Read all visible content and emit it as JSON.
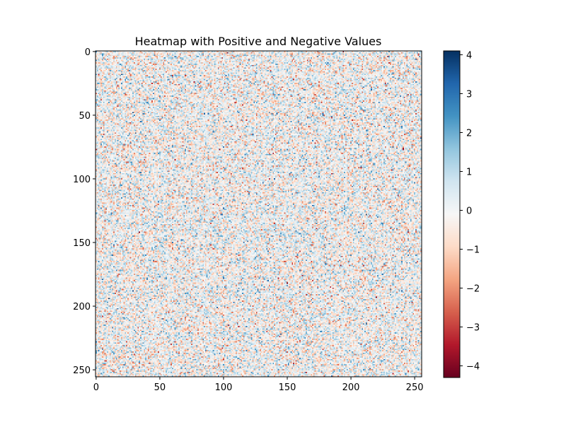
{
  "chart_data": {
    "type": "heatmap",
    "title": "Heatmap with Positive and Negative Values",
    "xlabel": "",
    "ylabel": "",
    "rows": 256,
    "cols": 256,
    "xlim": [
      0,
      256
    ],
    "ylim": [
      256,
      0
    ],
    "x_ticks": [
      0,
      50,
      100,
      150,
      200,
      250
    ],
    "y_ticks": [
      0,
      50,
      100,
      150,
      200,
      250
    ],
    "y_axis_inverted": true,
    "grid": false,
    "colormap": "RdBu",
    "value_distribution": "random normal, mean 0, std 1",
    "value_range": [
      -4.3,
      4.1
    ],
    "colorbar": {
      "placement": "right",
      "min": -4.3,
      "max": 4.1,
      "ticks": [
        4,
        3,
        2,
        1,
        0,
        -1,
        -2,
        -3,
        -4
      ],
      "tick_labels": [
        "4",
        "3",
        "2",
        "1",
        "0",
        "−1",
        "−2",
        "−3",
        "−4"
      ]
    },
    "colors": {
      "min_color": "#67001f",
      "center_color": "#f7f7f7",
      "max_color": "#053061"
    }
  }
}
